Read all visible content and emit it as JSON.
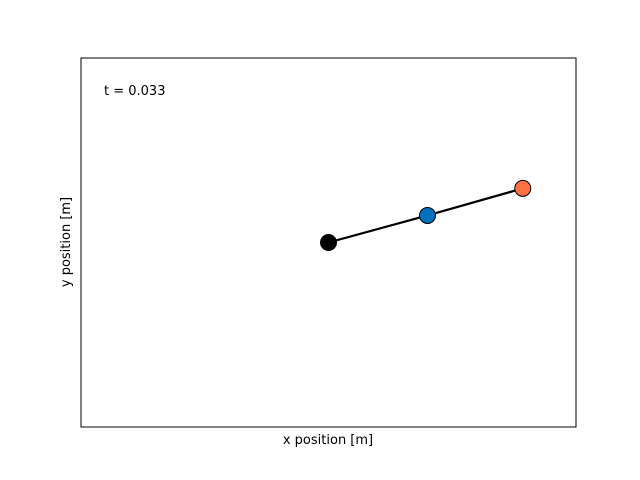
{
  "chart_data": {
    "type": "line",
    "title": "",
    "xlabel": "x position [m]",
    "ylabel": "y position [m]",
    "xticks": false,
    "yticks": false,
    "grid": false,
    "annotation": "t = 0.033",
    "xlim": [
      -2.0,
      2.0
    ],
    "ylim": [
      -1.5,
      1.5
    ],
    "series": [
      {
        "points": [
          {
            "x": 0.0,
            "y": 0.0
          },
          {
            "x": 0.8,
            "y": 0.22
          },
          {
            "x": 1.57,
            "y": 0.44
          }
        ],
        "line_color": "#000000",
        "marker_colors": [
          "#000000",
          "#0072bd",
          "#ff7043"
        ]
      }
    ]
  }
}
